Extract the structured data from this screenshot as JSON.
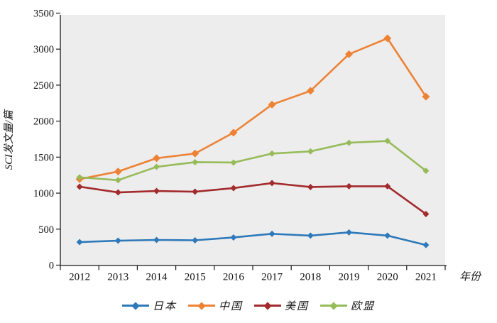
{
  "figure": {
    "background": "#ffffff",
    "plot_background": "#EDEDED",
    "axis_color": "#1a1a1a",
    "tick_label_color": "#111111"
  },
  "chart_data": {
    "type": "line",
    "title": "",
    "xlabel": "年份",
    "ylabel": "SCI发文量/篇",
    "x": [
      "2012",
      "2013",
      "2014",
      "2015",
      "2016",
      "2017",
      "2018",
      "2019",
      "2020",
      "2021"
    ],
    "ylim": [
      0,
      3500
    ],
    "yticks": [
      0,
      500,
      1000,
      1500,
      2000,
      2500,
      3000,
      3500
    ],
    "grid": false,
    "marker": "diamond",
    "legend_position": "bottom",
    "series": [
      {
        "key": "japan",
        "name": "日本",
        "color": "#2E79B9",
        "values": [
          320,
          340,
          350,
          345,
          385,
          435,
          410,
          455,
          410,
          280
        ]
      },
      {
        "key": "china",
        "name": "中国",
        "color": "#ED8235",
        "values": [
          1195,
          1300,
          1485,
          1550,
          1840,
          2230,
          2420,
          2930,
          3150,
          2340
        ]
      },
      {
        "key": "usa",
        "name": "美国",
        "color": "#A32A2D",
        "values": [
          1090,
          1010,
          1030,
          1020,
          1070,
          1140,
          1085,
          1095,
          1095,
          710
        ]
      },
      {
        "key": "eu",
        "name": "欧盟",
        "color": "#96BB59",
        "values": [
          1220,
          1180,
          1365,
          1430,
          1425,
          1550,
          1580,
          1700,
          1725,
          1310
        ]
      }
    ]
  }
}
